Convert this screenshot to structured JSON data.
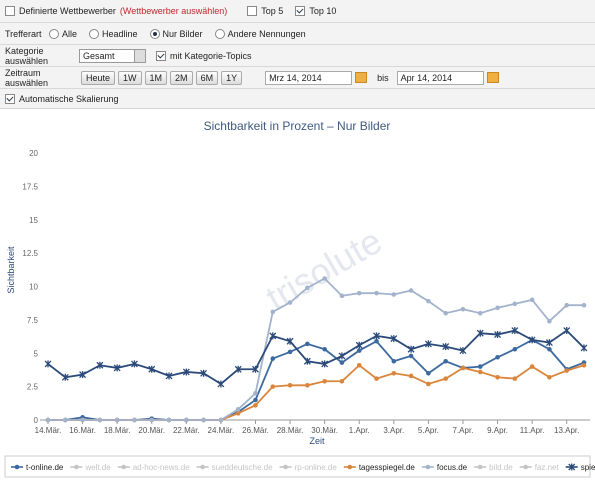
{
  "filters": {
    "competitors": {
      "label": "Definierte Wettbewerber",
      "checked": false,
      "link": "(Wettbewerber auswählen)"
    },
    "top5": {
      "label": "Top 5",
      "checked": false
    },
    "top10": {
      "label": "Top 10",
      "checked": true
    },
    "hit_type": {
      "label": "Trefferart",
      "options": [
        "Alle",
        "Headline",
        "Nur Bilder",
        "Andere Nennungen"
      ],
      "selected": 2
    },
    "category": {
      "label": "Kategorie auswählen",
      "value": "Gesamt",
      "topics": {
        "label": "mit Kategorie-Topics",
        "checked": true
      }
    },
    "period": {
      "label": "Zeitraum auswählen",
      "buttons": [
        "Heute",
        "1W",
        "1M",
        "2M",
        "6M",
        "1Y"
      ],
      "from": "Mrz 14, 2014",
      "to_label": "bis",
      "to": "Apr 14, 2014"
    },
    "autoscale": {
      "label": "Automatische Skalierung",
      "checked": true
    }
  },
  "chart_data": {
    "type": "line",
    "title": "Sichtbarkeit in Prozent – Nur Bilder",
    "watermark": "trisolute",
    "x_label": "Zeit",
    "y_label": "Sichtbarkeit",
    "categories": [
      "14.Mär.",
      null,
      "16.Mär.",
      null,
      "18.Mär.",
      null,
      "20.Mär.",
      null,
      "22.Mär.",
      null,
      "24.Mär.",
      null,
      "26.Mär.",
      null,
      "28.Mär.",
      null,
      "30.Mär.",
      null,
      "1.Apr.",
      null,
      "3.Apr.",
      null,
      "5.Apr.",
      null,
      "7.Apr.",
      null,
      "9.Apr.",
      null,
      "11.Apr.",
      null,
      "13.Apr.",
      null
    ],
    "ylim": [
      0,
      20
    ],
    "yticks": [
      0,
      2.5,
      5,
      7.5,
      10,
      12.5,
      15,
      17.5,
      20
    ],
    "grid": false,
    "legend_inactive_color": "#c4c4c4",
    "series": [
      {
        "name": "t-online.de",
        "color": "#3d6a9e",
        "marker": "circle",
        "visible": true,
        "values": [
          0,
          0,
          0.2,
          0,
          0,
          0,
          0.1,
          0,
          0,
          0,
          0,
          0.6,
          1.5,
          4.6,
          5.1,
          5.7,
          5.3,
          4.3,
          5.2,
          5.9,
          4.4,
          4.8,
          3.5,
          4.4,
          3.9,
          4.0,
          4.7,
          5.3,
          6.0,
          5.3,
          3.8,
          4.3
        ]
      },
      {
        "name": "welt.de",
        "visible": false
      },
      {
        "name": "ad-hoc-news.de",
        "visible": false
      },
      {
        "name": "sueddeutsche.de",
        "visible": false
      },
      {
        "name": "rp-online.de",
        "visible": false
      },
      {
        "name": "tagesspiegel.de",
        "color": "#d9853b",
        "marker": "circle",
        "visible": true,
        "values": [
          0,
          0,
          0,
          0,
          0,
          0,
          0,
          0,
          0,
          0,
          0,
          0.5,
          1.1,
          2.5,
          2.6,
          2.6,
          2.9,
          2.9,
          4.1,
          3.1,
          3.5,
          3.3,
          2.7,
          3.1,
          3.9,
          3.6,
          3.2,
          3.1,
          4.0,
          3.2,
          3.7,
          4.1
        ]
      },
      {
        "name": "focus.de",
        "color": "#a3b3cc",
        "marker": "circle",
        "visible": true,
        "values": [
          0,
          0,
          0,
          0,
          0,
          0,
          0,
          0,
          0,
          0,
          0,
          0.8,
          2.0,
          8.1,
          8.8,
          9.9,
          10.6,
          9.3,
          9.5,
          9.5,
          9.4,
          9.7,
          8.9,
          8.0,
          8.3,
          8.0,
          8.4,
          8.7,
          9.0,
          7.4,
          8.6,
          8.6
        ]
      },
      {
        "name": "bild.de",
        "visible": false
      },
      {
        "name": "faz.net",
        "visible": false
      },
      {
        "name": "spiegel.de",
        "color": "#2b4a7a",
        "marker": "cross",
        "visible": true,
        "values": [
          4.2,
          3.2,
          3.4,
          4.1,
          3.9,
          4.2,
          3.8,
          3.3,
          3.6,
          3.5,
          2.7,
          3.8,
          3.8,
          6.3,
          5.9,
          4.4,
          4.2,
          4.8,
          5.6,
          6.3,
          6.1,
          5.3,
          5.7,
          5.5,
          5.2,
          6.5,
          6.4,
          6.7,
          6.0,
          5.8,
          6.7,
          5.4
        ]
      }
    ]
  }
}
